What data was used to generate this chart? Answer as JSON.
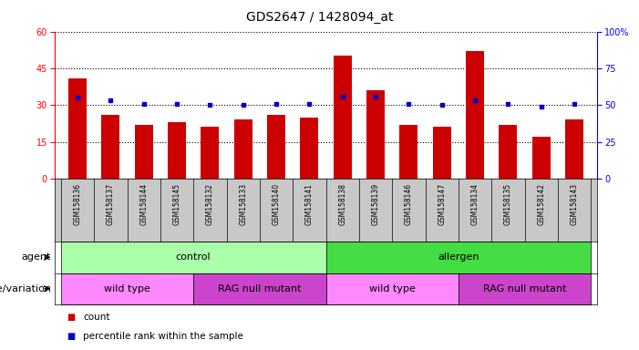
{
  "title": "GDS2647 / 1428094_at",
  "samples": [
    "GSM158136",
    "GSM158137",
    "GSM158144",
    "GSM158145",
    "GSM158132",
    "GSM158133",
    "GSM158140",
    "GSM158141",
    "GSM158138",
    "GSM158139",
    "GSM158146",
    "GSM158147",
    "GSM158134",
    "GSM158135",
    "GSM158142",
    "GSM158143"
  ],
  "counts": [
    41,
    26,
    22,
    23,
    21,
    24,
    26,
    25,
    50,
    36,
    22,
    21,
    52,
    22,
    17,
    24
  ],
  "percentiles": [
    55,
    53,
    51,
    51,
    50,
    50,
    51,
    51,
    56,
    56,
    51,
    50,
    53,
    51,
    49,
    51
  ],
  "ylim_left": [
    0,
    60
  ],
  "ylim_right": [
    0,
    100
  ],
  "yticks_left": [
    0,
    15,
    30,
    45,
    60
  ],
  "yticks_right": [
    0,
    25,
    50,
    75,
    100
  ],
  "bar_color": "#cc0000",
  "dot_color": "#0000cc",
  "agent_groups": [
    {
      "label": "control",
      "start": 0,
      "end": 8,
      "color": "#aaffaa"
    },
    {
      "label": "allergen",
      "start": 8,
      "end": 16,
      "color": "#44dd44"
    }
  ],
  "genotype_groups": [
    {
      "label": "wild type",
      "start": 0,
      "end": 4,
      "color": "#ff88ff"
    },
    {
      "label": "RAG null mutant",
      "start": 4,
      "end": 8,
      "color": "#cc44cc"
    },
    {
      "label": "wild type",
      "start": 8,
      "end": 12,
      "color": "#ff88ff"
    },
    {
      "label": "RAG null mutant",
      "start": 12,
      "end": 16,
      "color": "#cc44cc"
    }
  ],
  "xlabel_area_color": "#c8c8c8",
  "title_fontsize": 10,
  "tick_fontsize": 7,
  "label_fontsize": 8,
  "annotation_fontsize": 8,
  "bar_width": 0.55
}
